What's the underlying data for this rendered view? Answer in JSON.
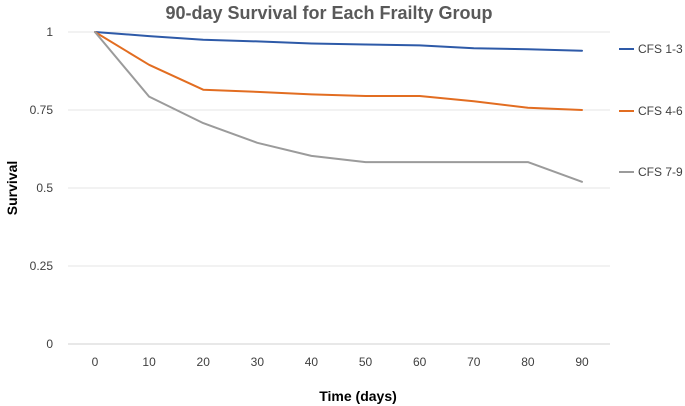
{
  "chart_data": {
    "type": "line",
    "title": "90-day Survival for Each Frailty Group",
    "xlabel": "Time (days)",
    "ylabel": "Survival",
    "x": [
      0,
      10,
      20,
      30,
      40,
      50,
      60,
      70,
      80,
      90
    ],
    "xlim": [
      0,
      90
    ],
    "ylim": [
      0,
      1
    ],
    "x_ticks": [
      "0",
      "10",
      "20",
      "30",
      "40",
      "50",
      "60",
      "70",
      "80",
      "90"
    ],
    "y_ticks": [
      {
        "value": 0,
        "label": "0"
      },
      {
        "value": 0.25,
        "label": "0.25"
      },
      {
        "value": 0.5,
        "label": "0.5"
      },
      {
        "value": 0.75,
        "label": "0.75"
      },
      {
        "value": 1,
        "label": "1"
      }
    ],
    "grid": "horizontal",
    "legend_position": "right",
    "series": [
      {
        "name": "CFS 1-3",
        "color": "#2e5aa8",
        "values": [
          1.0,
          0.987,
          0.975,
          0.97,
          0.963,
          0.96,
          0.957,
          0.948,
          0.945,
          0.94
        ]
      },
      {
        "name": "CFS 4-6",
        "color": "#e26d21",
        "values": [
          1.0,
          0.895,
          0.815,
          0.808,
          0.8,
          0.795,
          0.795,
          0.778,
          0.757,
          0.75
        ]
      },
      {
        "name": "CFS 7-9",
        "color": "#9b9b9b",
        "values": [
          1.0,
          0.793,
          0.708,
          0.645,
          0.603,
          0.583,
          0.583,
          0.583,
          0.583,
          0.52
        ]
      }
    ]
  }
}
